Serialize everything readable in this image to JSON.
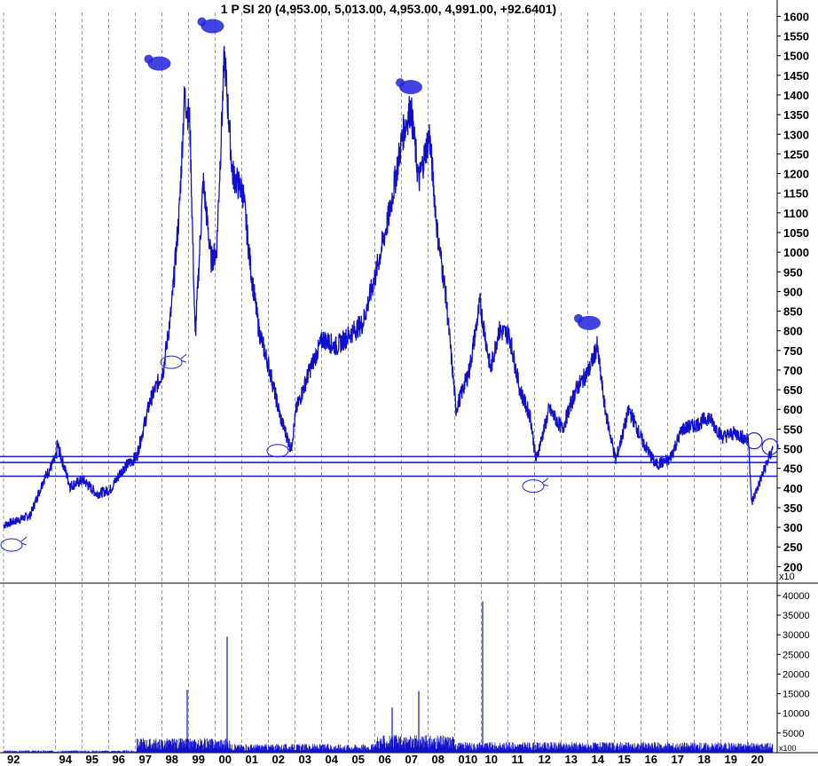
{
  "title": "1 P SI 20 (4,953.00, 5,013.00, 4,953.00, 4,991.00, +92.6401)",
  "colors": {
    "price": "#1010cc",
    "grid": "#9a9a9a",
    "support": "#1c1ccc",
    "marker": "#2222dd"
  },
  "chart_data": [
    {
      "type": "line",
      "title": "1 P SI 20 (4,953.00, 5,013.00, 4,953.00, 4,991.00, +92.6401)",
      "y_unit_label": "x10",
      "ylim": [
        185,
        1610
      ],
      "y_ticks": [
        "1600",
        "1550",
        "1500",
        "1450",
        "1400",
        "1350",
        "1300",
        "1250",
        "1200",
        "1150",
        "1100",
        "1050",
        "1000",
        "950",
        "900",
        "850",
        "800",
        "750",
        "700",
        "650",
        "600",
        "550",
        "500",
        "450",
        "400",
        "350",
        "300",
        "250",
        "200"
      ],
      "x_ticks": [
        "92",
        "94",
        "95",
        "96",
        "97",
        "98",
        "99",
        "00",
        "01",
        "02",
        "03",
        "04",
        "05",
        "06",
        "07",
        "08",
        "010",
        "10",
        "11",
        "12",
        "13",
        "14",
        "15",
        "16",
        "17",
        "18",
        "19",
        "20"
      ],
      "grid": "vertical dashed at year boundaries",
      "support_levels": [
        480,
        465,
        430
      ],
      "series": [
        {
          "points": [
            [
              "92",
              305
            ],
            [
              "93",
              330
            ],
            [
              "93.5",
              420
            ],
            [
              "94",
              480
            ],
            [
              "94",
              515
            ],
            [
              "94.5",
              405
            ],
            [
              "95",
              420
            ],
            [
              "95.5",
              385
            ],
            [
              "96",
              395
            ],
            [
              "96.5",
              450
            ],
            [
              "97",
              480
            ],
            [
              "97.5",
              620
            ],
            [
              "98",
              700
            ],
            [
              "98.3",
              850
            ],
            [
              "98.6",
              1100
            ],
            [
              "98.8",
              1400
            ],
            [
              "99",
              1330
            ],
            [
              "99.2",
              780
            ],
            [
              "99.5",
              1180
            ],
            [
              "99.8",
              980
            ],
            [
              "00",
              1000
            ],
            [
              "00.3",
              1500
            ],
            [
              "00.6",
              1200
            ],
            [
              "01",
              1150
            ],
            [
              "01.3",
              950
            ],
            [
              "01.6",
              800
            ],
            [
              "02",
              700
            ],
            [
              "02.4",
              580
            ],
            [
              "02.8",
              500
            ],
            [
              "03",
              600
            ],
            [
              "03.5",
              700
            ],
            [
              "04",
              780
            ],
            [
              "04.5",
              760
            ],
            [
              "05",
              790
            ],
            [
              "05.5",
              820
            ],
            [
              "06",
              950
            ],
            [
              "06.5",
              1100
            ],
            [
              "07",
              1300
            ],
            [
              "07.3",
              1370
            ],
            [
              "07.6",
              1180
            ],
            [
              "08",
              1300
            ],
            [
              "08.3",
              1050
            ],
            [
              "08.6",
              900
            ],
            [
              "09",
              600
            ],
            [
              "09.5",
              700
            ],
            [
              "010",
              870
            ],
            [
              "10.3",
              700
            ],
            [
              "10.6",
              800
            ],
            [
              "11",
              790
            ],
            [
              "11.4",
              650
            ],
            [
              "11.8",
              580
            ],
            [
              "12",
              470
            ],
            [
              "12.5",
              600
            ],
            [
              "13",
              550
            ],
            [
              "13.5",
              650
            ],
            [
              "14",
              700
            ],
            [
              "14.3",
              760
            ],
            [
              "14.6",
              600
            ],
            [
              "15",
              470
            ],
            [
              "15.5",
              600
            ],
            [
              "16",
              520
            ],
            [
              "16.5",
              460
            ],
            [
              "17",
              470
            ],
            [
              "17.5",
              550
            ],
            [
              "18",
              560
            ],
            [
              "18.5",
              580
            ],
            [
              "19",
              530
            ],
            [
              "19.5",
              540
            ],
            [
              "20",
              520
            ],
            [
              "20.1",
              360
            ],
            [
              "20.6",
              450
            ],
            [
              "20.9",
              500
            ]
          ]
        }
      ],
      "annotations": [
        {
          "kind": "bear",
          "near": "98 peak"
        },
        {
          "kind": "bear",
          "near": "00 peak"
        },
        {
          "kind": "bear",
          "near": "07 peak"
        },
        {
          "kind": "bear",
          "near": "14 peak"
        },
        {
          "kind": "bull",
          "near": "92 low"
        },
        {
          "kind": "bull",
          "near": "98 low"
        },
        {
          "kind": "bull",
          "near": "03 low"
        },
        {
          "kind": "bull",
          "near": "12 low"
        }
      ]
    },
    {
      "type": "bar",
      "title": "",
      "ylim": [
        0,
        42000
      ],
      "y_ticks": [
        "40000",
        "35000",
        "30000",
        "25000",
        "20000",
        "15000",
        "10000",
        "5000"
      ],
      "y_unit_label": "x100",
      "spikes": [
        {
          "x": "98.9",
          "value": 16000
        },
        {
          "x": "00.4",
          "value": 29500
        },
        {
          "x": "06.6",
          "value": 11500
        },
        {
          "x": "07.6",
          "value": 15700
        },
        {
          "x": "10.0",
          "value": 38500
        }
      ],
      "baseline_level": 2500
    }
  ]
}
